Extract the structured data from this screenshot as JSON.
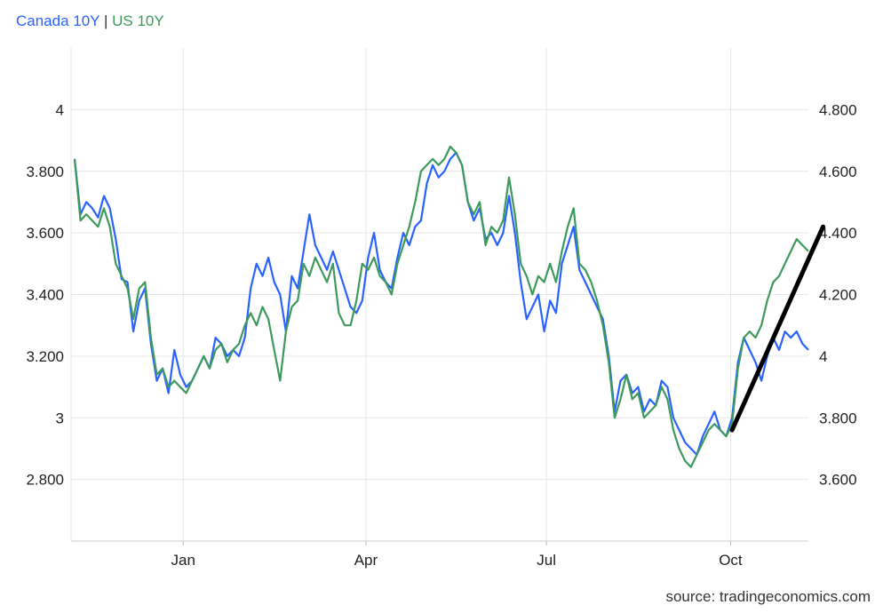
{
  "legend": {
    "canada_label": "Canada 10Y",
    "separator": "|",
    "us_label": "US 10Y"
  },
  "source": "source: tradingeconomics.com",
  "colors": {
    "canada": "#2962ff",
    "us": "#3d9a5b",
    "trend": "#000000",
    "grid": "#e6e6e6",
    "axis_text": "#222222"
  },
  "chart_data": {
    "type": "line",
    "title": "",
    "x_ticks": [
      {
        "label": "Jan",
        "t": 0.148
      },
      {
        "label": "Apr",
        "t": 0.397
      },
      {
        "label": "Jul",
        "t": 0.643
      },
      {
        "label": "Oct",
        "t": 0.894
      }
    ],
    "y_left": {
      "lim": [
        2.6,
        4.2
      ],
      "ticks": [
        2.8,
        3.0,
        3.2,
        3.4,
        3.6,
        3.8,
        4.0
      ],
      "tick_labels": [
        "2.800",
        "3",
        "3.200",
        "3.400",
        "3.600",
        "3.800",
        "4"
      ]
    },
    "y_right": {
      "lim": [
        3.4,
        5.0
      ],
      "ticks": [
        3.6,
        3.8,
        4.0,
        4.2,
        4.4,
        4.6,
        4.8
      ],
      "tick_labels": [
        "3.600",
        "3.800",
        "4",
        "4.200",
        "4.400",
        "4.600",
        "4.800"
      ]
    },
    "grid": true,
    "legend_position": "top-left",
    "series": [
      {
        "name": "Canada 10Y",
        "axis": "left",
        "points": [
          [
            0.0,
            3.84
          ],
          [
            0.008,
            3.66
          ],
          [
            0.016,
            3.7
          ],
          [
            0.024,
            3.68
          ],
          [
            0.032,
            3.65
          ],
          [
            0.04,
            3.72
          ],
          [
            0.048,
            3.68
          ],
          [
            0.056,
            3.58
          ],
          [
            0.064,
            3.45
          ],
          [
            0.072,
            3.44
          ],
          [
            0.08,
            3.28
          ],
          [
            0.088,
            3.38
          ],
          [
            0.096,
            3.42
          ],
          [
            0.104,
            3.24
          ],
          [
            0.112,
            3.12
          ],
          [
            0.12,
            3.16
          ],
          [
            0.128,
            3.08
          ],
          [
            0.136,
            3.22
          ],
          [
            0.144,
            3.14
          ],
          [
            0.152,
            3.1
          ],
          [
            0.16,
            3.12
          ],
          [
            0.168,
            3.16
          ],
          [
            0.176,
            3.2
          ],
          [
            0.184,
            3.16
          ],
          [
            0.192,
            3.26
          ],
          [
            0.2,
            3.24
          ],
          [
            0.208,
            3.2
          ],
          [
            0.216,
            3.22
          ],
          [
            0.224,
            3.2
          ],
          [
            0.232,
            3.26
          ],
          [
            0.24,
            3.42
          ],
          [
            0.248,
            3.5
          ],
          [
            0.256,
            3.46
          ],
          [
            0.264,
            3.52
          ],
          [
            0.272,
            3.44
          ],
          [
            0.28,
            3.4
          ],
          [
            0.288,
            3.28
          ],
          [
            0.296,
            3.46
          ],
          [
            0.304,
            3.42
          ],
          [
            0.312,
            3.54
          ],
          [
            0.32,
            3.66
          ],
          [
            0.328,
            3.56
          ],
          [
            0.336,
            3.52
          ],
          [
            0.344,
            3.48
          ],
          [
            0.352,
            3.54
          ],
          [
            0.36,
            3.48
          ],
          [
            0.368,
            3.42
          ],
          [
            0.376,
            3.36
          ],
          [
            0.384,
            3.34
          ],
          [
            0.392,
            3.38
          ],
          [
            0.4,
            3.52
          ],
          [
            0.408,
            3.6
          ],
          [
            0.416,
            3.48
          ],
          [
            0.424,
            3.44
          ],
          [
            0.432,
            3.42
          ],
          [
            0.44,
            3.52
          ],
          [
            0.448,
            3.6
          ],
          [
            0.456,
            3.56
          ],
          [
            0.464,
            3.62
          ],
          [
            0.472,
            3.64
          ],
          [
            0.48,
            3.76
          ],
          [
            0.488,
            3.82
          ],
          [
            0.496,
            3.78
          ],
          [
            0.504,
            3.8
          ],
          [
            0.512,
            3.84
          ],
          [
            0.52,
            3.86
          ],
          [
            0.528,
            3.82
          ],
          [
            0.536,
            3.7
          ],
          [
            0.544,
            3.64
          ],
          [
            0.552,
            3.68
          ],
          [
            0.56,
            3.58
          ],
          [
            0.568,
            3.6
          ],
          [
            0.576,
            3.56
          ],
          [
            0.584,
            3.6
          ],
          [
            0.592,
            3.72
          ],
          [
            0.6,
            3.6
          ],
          [
            0.608,
            3.44
          ],
          [
            0.616,
            3.32
          ],
          [
            0.624,
            3.36
          ],
          [
            0.632,
            3.4
          ],
          [
            0.64,
            3.28
          ],
          [
            0.648,
            3.38
          ],
          [
            0.656,
            3.34
          ],
          [
            0.664,
            3.5
          ],
          [
            0.672,
            3.56
          ],
          [
            0.68,
            3.62
          ],
          [
            0.688,
            3.48
          ],
          [
            0.696,
            3.44
          ],
          [
            0.704,
            3.4
          ],
          [
            0.712,
            3.36
          ],
          [
            0.72,
            3.32
          ],
          [
            0.728,
            3.2
          ],
          [
            0.736,
            3.02
          ],
          [
            0.744,
            3.12
          ],
          [
            0.752,
            3.14
          ],
          [
            0.76,
            3.08
          ],
          [
            0.768,
            3.1
          ],
          [
            0.776,
            3.02
          ],
          [
            0.784,
            3.06
          ],
          [
            0.792,
            3.04
          ],
          [
            0.8,
            3.12
          ],
          [
            0.808,
            3.1
          ],
          [
            0.816,
            3.0
          ],
          [
            0.824,
            2.96
          ],
          [
            0.832,
            2.92
          ],
          [
            0.84,
            2.9
          ],
          [
            0.848,
            2.88
          ],
          [
            0.856,
            2.94
          ],
          [
            0.864,
            2.98
          ],
          [
            0.872,
            3.02
          ],
          [
            0.88,
            2.96
          ],
          [
            0.888,
            2.94
          ],
          [
            0.896,
            3.0
          ],
          [
            0.904,
            3.18
          ],
          [
            0.912,
            3.26
          ],
          [
            0.92,
            3.22
          ],
          [
            0.928,
            3.18
          ],
          [
            0.936,
            3.12
          ],
          [
            0.944,
            3.2
          ],
          [
            0.952,
            3.26
          ],
          [
            0.96,
            3.22
          ],
          [
            0.968,
            3.28
          ],
          [
            0.976,
            3.26
          ],
          [
            0.984,
            3.28
          ],
          [
            0.992,
            3.24
          ],
          [
            1.0,
            3.22
          ]
        ]
      },
      {
        "name": "US 10Y",
        "axis": "right",
        "points": [
          [
            0.0,
            4.64
          ],
          [
            0.008,
            4.44
          ],
          [
            0.016,
            4.46
          ],
          [
            0.024,
            4.44
          ],
          [
            0.032,
            4.42
          ],
          [
            0.04,
            4.48
          ],
          [
            0.048,
            4.42
          ],
          [
            0.056,
            4.3
          ],
          [
            0.064,
            4.26
          ],
          [
            0.072,
            4.22
          ],
          [
            0.08,
            4.12
          ],
          [
            0.088,
            4.22
          ],
          [
            0.096,
            4.24
          ],
          [
            0.104,
            4.06
          ],
          [
            0.112,
            3.94
          ],
          [
            0.12,
            3.96
          ],
          [
            0.128,
            3.9
          ],
          [
            0.136,
            3.92
          ],
          [
            0.144,
            3.9
          ],
          [
            0.152,
            3.88
          ],
          [
            0.16,
            3.92
          ],
          [
            0.168,
            3.96
          ],
          [
            0.176,
            4.0
          ],
          [
            0.184,
            3.96
          ],
          [
            0.192,
            4.02
          ],
          [
            0.2,
            4.04
          ],
          [
            0.208,
            3.98
          ],
          [
            0.216,
            4.02
          ],
          [
            0.224,
            4.04
          ],
          [
            0.232,
            4.1
          ],
          [
            0.24,
            4.14
          ],
          [
            0.248,
            4.1
          ],
          [
            0.256,
            4.16
          ],
          [
            0.264,
            4.12
          ],
          [
            0.272,
            4.02
          ],
          [
            0.28,
            3.92
          ],
          [
            0.288,
            4.08
          ],
          [
            0.296,
            4.16
          ],
          [
            0.304,
            4.18
          ],
          [
            0.312,
            4.3
          ],
          [
            0.32,
            4.26
          ],
          [
            0.328,
            4.32
          ],
          [
            0.336,
            4.28
          ],
          [
            0.344,
            4.24
          ],
          [
            0.352,
            4.3
          ],
          [
            0.36,
            4.14
          ],
          [
            0.368,
            4.1
          ],
          [
            0.376,
            4.1
          ],
          [
            0.384,
            4.18
          ],
          [
            0.392,
            4.3
          ],
          [
            0.4,
            4.28
          ],
          [
            0.408,
            4.32
          ],
          [
            0.416,
            4.26
          ],
          [
            0.424,
            4.24
          ],
          [
            0.432,
            4.2
          ],
          [
            0.44,
            4.3
          ],
          [
            0.448,
            4.36
          ],
          [
            0.456,
            4.42
          ],
          [
            0.464,
            4.5
          ],
          [
            0.472,
            4.6
          ],
          [
            0.48,
            4.62
          ],
          [
            0.488,
            4.64
          ],
          [
            0.496,
            4.62
          ],
          [
            0.504,
            4.64
          ],
          [
            0.512,
            4.68
          ],
          [
            0.52,
            4.66
          ],
          [
            0.528,
            4.62
          ],
          [
            0.536,
            4.5
          ],
          [
            0.544,
            4.46
          ],
          [
            0.552,
            4.5
          ],
          [
            0.56,
            4.36
          ],
          [
            0.568,
            4.42
          ],
          [
            0.576,
            4.4
          ],
          [
            0.584,
            4.44
          ],
          [
            0.592,
            4.58
          ],
          [
            0.6,
            4.46
          ],
          [
            0.608,
            4.3
          ],
          [
            0.616,
            4.26
          ],
          [
            0.624,
            4.2
          ],
          [
            0.632,
            4.26
          ],
          [
            0.64,
            4.24
          ],
          [
            0.648,
            4.3
          ],
          [
            0.656,
            4.24
          ],
          [
            0.664,
            4.34
          ],
          [
            0.672,
            4.42
          ],
          [
            0.68,
            4.48
          ],
          [
            0.688,
            4.3
          ],
          [
            0.696,
            4.28
          ],
          [
            0.704,
            4.24
          ],
          [
            0.712,
            4.18
          ],
          [
            0.72,
            4.1
          ],
          [
            0.728,
            3.98
          ],
          [
            0.736,
            3.8
          ],
          [
            0.744,
            3.86
          ],
          [
            0.752,
            3.94
          ],
          [
            0.76,
            3.86
          ],
          [
            0.768,
            3.88
          ],
          [
            0.776,
            3.8
          ],
          [
            0.784,
            3.82
          ],
          [
            0.792,
            3.84
          ],
          [
            0.8,
            3.9
          ],
          [
            0.808,
            3.86
          ],
          [
            0.816,
            3.76
          ],
          [
            0.824,
            3.7
          ],
          [
            0.832,
            3.66
          ],
          [
            0.84,
            3.64
          ],
          [
            0.848,
            3.68
          ],
          [
            0.856,
            3.72
          ],
          [
            0.864,
            3.76
          ],
          [
            0.872,
            3.78
          ],
          [
            0.88,
            3.76
          ],
          [
            0.888,
            3.74
          ],
          [
            0.896,
            3.78
          ],
          [
            0.904,
            3.96
          ],
          [
            0.912,
            4.06
          ],
          [
            0.92,
            4.08
          ],
          [
            0.928,
            4.06
          ],
          [
            0.936,
            4.1
          ],
          [
            0.944,
            4.18
          ],
          [
            0.952,
            4.24
          ],
          [
            0.96,
            4.26
          ],
          [
            0.968,
            4.3
          ],
          [
            0.976,
            4.34
          ],
          [
            0.984,
            4.38
          ],
          [
            0.992,
            4.36
          ],
          [
            1.0,
            4.34
          ]
        ]
      }
    ],
    "annotations": [
      {
        "type": "trend-line",
        "axis": "right",
        "from": [
          0.896,
          3.76
        ],
        "to": [
          1.02,
          4.42
        ]
      }
    ]
  }
}
